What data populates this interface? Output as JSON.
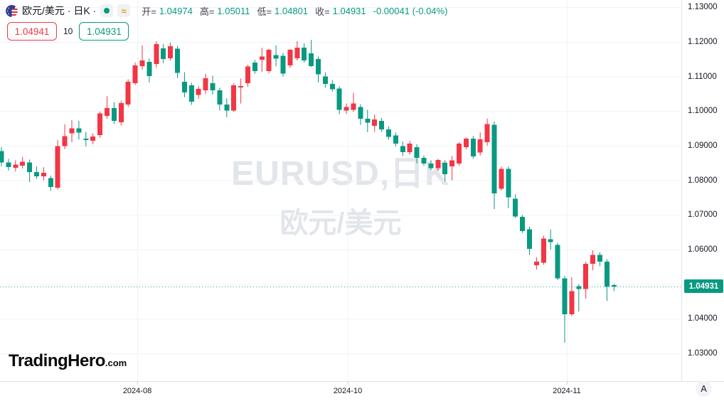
{
  "header": {
    "title": "欧元/美元 · 日K ·",
    "approx": "≈",
    "ohlc": {
      "open_label": "开=",
      "open": "1.04974",
      "high_label": "高=",
      "high": "1.05011",
      "low_label": "低=",
      "low": "1.04801",
      "close_label": "收=",
      "close": "1.04931",
      "change": "-0.00041 (-0.04%)"
    }
  },
  "quote": {
    "ask": "1.04941",
    "spread": "10",
    "bid": "1.04931"
  },
  "watermark": {
    "line1": "EURUSD,日K",
    "line2": "欧元/美元"
  },
  "logo": {
    "name": "TradingHero",
    "tld": ".com"
  },
  "a_button": "A",
  "chart_data": {
    "type": "candlestick",
    "title": "EURUSD 日K (欧元/美元)",
    "ylim": [
      1.022,
      1.1321
    ],
    "grid_prices": [
      1.03,
      1.04,
      1.05,
      1.06,
      1.07,
      1.08,
      1.09,
      1.1,
      1.11,
      1.12,
      1.13
    ],
    "y_axis": [
      {
        "price": 1.13,
        "label": "1.13000"
      },
      {
        "price": 1.12,
        "label": "1.12000"
      },
      {
        "price": 1.11,
        "label": "1.11000"
      },
      {
        "price": 1.1,
        "label": "1.10000"
      },
      {
        "price": 1.09,
        "label": "1.09000"
      },
      {
        "price": 1.08,
        "label": "1.08000"
      },
      {
        "price": 1.07,
        "label": "1.07000"
      },
      {
        "price": 1.06,
        "label": "1.06000"
      },
      {
        "price": 1.04,
        "label": "1.04000"
      },
      {
        "price": 1.03,
        "label": "1.03000"
      }
    ],
    "x_axis": [
      {
        "label": "2024-08",
        "x": 193
      },
      {
        "label": "2024-10",
        "x": 489
      },
      {
        "label": "2024-11",
        "x": 797
      }
    ],
    "price_line": {
      "price": 1.04931,
      "label": "1.04931"
    },
    "colors": {
      "up": "#f23645",
      "down": "#089981"
    },
    "last_bar": {
      "open": 1.04974,
      "high": 1.05011,
      "low": 1.04801,
      "close": 1.04931,
      "change": -0.00041,
      "change_pct": "-0.04%"
    },
    "bars": [
      [
        1.0885,
        1.0896,
        1.084,
        1.0852
      ],
      [
        1.0852,
        1.0862,
        1.0828,
        1.0838
      ],
      [
        1.0836,
        1.0858,
        1.0826,
        1.0845
      ],
      [
        1.0842,
        1.0868,
        1.0834,
        1.0854
      ],
      [
        1.0852,
        1.086,
        1.0795,
        1.0824
      ],
      [
        1.0824,
        1.084,
        1.0804,
        1.0812
      ],
      [
        1.0812,
        1.0838,
        1.08,
        1.0822
      ],
      [
        1.0806,
        1.0814,
        1.077,
        1.0781
      ],
      [
        1.0779,
        1.0916,
        1.0773,
        1.0899
      ],
      [
        1.0899,
        1.0962,
        1.089,
        1.0928
      ],
      [
        1.0936,
        1.0974,
        1.091,
        1.095
      ],
      [
        1.095,
        1.0972,
        1.0918,
        1.0938
      ],
      [
        1.092,
        1.094,
        1.0898,
        1.0916
      ],
      [
        1.0914,
        1.0936,
        1.0904,
        1.0927
      ],
      [
        1.0931,
        1.0999,
        1.0923,
        1.0993
      ],
      [
        1.0986,
        1.1043,
        1.0978,
        1.1009
      ],
      [
        1.1009,
        1.1026,
        1.0963,
        1.0972
      ],
      [
        1.0968,
        1.103,
        1.0958,
        1.1023
      ],
      [
        1.1019,
        1.1092,
        1.1012,
        1.1085
      ],
      [
        1.1081,
        1.114,
        1.1075,
        1.1132
      ],
      [
        1.113,
        1.119,
        1.112,
        1.1146
      ],
      [
        1.1142,
        1.1152,
        1.1083,
        1.1101
      ],
      [
        1.1136,
        1.1202,
        1.1126,
        1.1194
      ],
      [
        1.1181,
        1.1194,
        1.1138,
        1.115
      ],
      [
        1.1153,
        1.1198,
        1.1146,
        1.1187
      ],
      [
        1.118,
        1.1188,
        1.1096,
        1.111
      ],
      [
        1.1085,
        1.1112,
        1.104,
        1.1054
      ],
      [
        1.1074,
        1.1082,
        1.1018,
        1.1027
      ],
      [
        1.1047,
        1.1072,
        1.1036,
        1.1064
      ],
      [
        1.106,
        1.1108,
        1.105,
        1.1095
      ],
      [
        1.1081,
        1.1102,
        1.1048,
        1.106
      ],
      [
        1.106,
        1.1068,
        1.1002,
        1.1019
      ],
      [
        1.1019,
        1.1037,
        1.0982,
        1.1002
      ],
      [
        1.1002,
        1.108,
        1.0998,
        1.1074
      ],
      [
        1.1068,
        1.1094,
        1.1022,
        1.1072
      ],
      [
        1.1081,
        1.1134,
        1.107,
        1.1129
      ],
      [
        1.114,
        1.1148,
        1.1108,
        1.1116
      ],
      [
        1.1148,
        1.1183,
        1.1113,
        1.1158
      ],
      [
        1.1116,
        1.118,
        1.111,
        1.1177
      ],
      [
        1.1162,
        1.119,
        1.113,
        1.1152
      ],
      [
        1.116,
        1.1168,
        1.11,
        1.1108
      ],
      [
        1.1132,
        1.118,
        1.1125,
        1.1177
      ],
      [
        1.1153,
        1.1202,
        1.1146,
        1.1183
      ],
      [
        1.1183,
        1.1196,
        1.114,
        1.1146
      ],
      [
        1.1167,
        1.1206,
        1.1128,
        1.113
      ],
      [
        1.1151,
        1.1158,
        1.1083,
        1.1106
      ],
      [
        1.11,
        1.1112,
        1.1068,
        1.1079
      ],
      [
        1.1079,
        1.109,
        1.1056,
        1.1063
      ],
      [
        1.1065,
        1.1072,
        1.0991,
        1.1004
      ],
      [
        1.1002,
        1.1022,
        1.0992,
        1.1012
      ],
      [
        1.1004,
        1.1053,
        1.0998,
        1.1022
      ],
      [
        1.1012,
        1.102,
        1.096,
        1.0978
      ],
      [
        1.0978,
        1.1004,
        1.0939,
        1.0967
      ],
      [
        1.0957,
        1.099,
        1.094,
        1.0976
      ],
      [
        1.0972,
        1.098,
        1.094,
        1.0947
      ],
      [
        1.0947,
        1.0956,
        1.0918,
        1.0926
      ],
      [
        1.093,
        1.0938,
        1.0898,
        1.0906
      ],
      [
        1.0899,
        1.0912,
        1.087,
        1.0881
      ],
      [
        1.0881,
        1.0914,
        1.0874,
        1.0906
      ],
      [
        1.0896,
        1.0904,
        1.0849,
        1.0865
      ],
      [
        1.0865,
        1.0872,
        1.0842,
        1.0849
      ],
      [
        1.0849,
        1.0858,
        1.083,
        1.0835
      ],
      [
        1.0835,
        1.0862,
        1.0828,
        1.0859
      ],
      [
        1.0851,
        1.0858,
        1.0797,
        1.0818
      ],
      [
        1.084,
        1.087,
        1.08,
        1.0858
      ],
      [
        1.0849,
        1.091,
        1.0843,
        1.0906
      ],
      [
        1.0896,
        1.0924,
        1.089,
        1.092
      ],
      [
        1.092,
        1.0928,
        1.0862,
        1.0869
      ],
      [
        1.088,
        1.0938,
        1.0872,
        1.0918
      ],
      [
        1.091,
        1.0978,
        1.09,
        1.0963
      ],
      [
        1.0961,
        1.097,
        1.0717,
        1.0762
      ],
      [
        1.0776,
        1.084,
        1.077,
        1.0833
      ],
      [
        1.0833,
        1.084,
        1.072,
        1.0751
      ],
      [
        1.0747,
        1.076,
        1.069,
        1.0696
      ],
      [
        1.0694,
        1.07,
        1.0648,
        1.0653
      ],
      [
        1.0659,
        1.0666,
        1.0584,
        1.0602
      ],
      [
        1.0555,
        1.0578,
        1.0542,
        1.0565
      ],
      [
        1.0562,
        1.064,
        1.0556,
        1.0632
      ],
      [
        1.063,
        1.0658,
        1.06,
        1.0622
      ],
      [
        1.0613,
        1.062,
        1.0512,
        1.0517
      ],
      [
        1.0517,
        1.0524,
        1.0331,
        1.0413
      ],
      [
        1.0413,
        1.052,
        1.0408,
        1.048
      ],
      [
        1.0494,
        1.05,
        1.0421,
        1.0486
      ],
      [
        1.0486,
        1.0565,
        1.0458,
        1.0559
      ],
      [
        1.0559,
        1.0598,
        1.054,
        1.0585
      ],
      [
        1.0585,
        1.0592,
        1.0552,
        1.0565
      ],
      [
        1.0565,
        1.0572,
        1.0452,
        1.0493
      ],
      [
        1.04974,
        1.05011,
        1.04801,
        1.04931
      ]
    ]
  }
}
